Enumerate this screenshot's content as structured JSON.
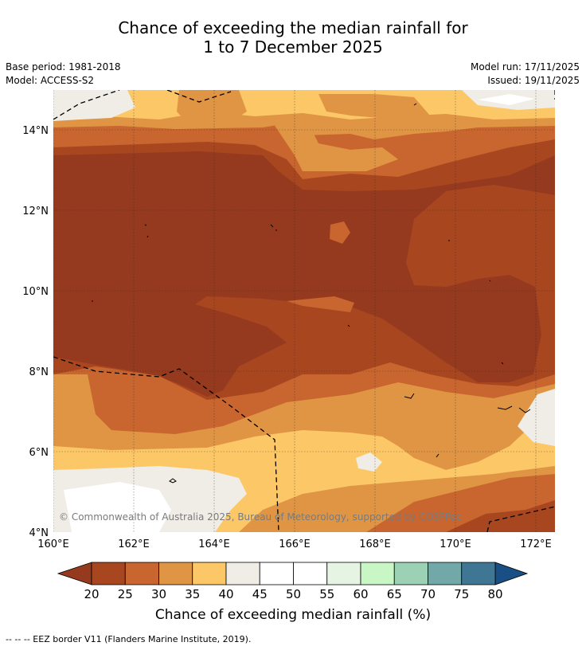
{
  "title": {
    "line1": "Chance of exceeding the median rainfall for",
    "line2": "1 to 7 December 2025"
  },
  "meta": {
    "base_period": "Base period: 1981-2018",
    "model": "Model: ACCESS-S2",
    "model_run": "Model run: 17/11/2025",
    "issued": "Issued: 19/11/2025"
  },
  "map": {
    "copyright": "© Commonwealth of Australia 2025, Bureau of Meteorology, supported by COSPPac",
    "lon_ticks": [
      "160°E",
      "162°E",
      "164°E",
      "166°E",
      "168°E",
      "170°E",
      "172°E"
    ],
    "lat_ticks": [
      "14°N",
      "12°N",
      "10°N",
      "8°N",
      "6°N",
      "4°N"
    ]
  },
  "colorbar": {
    "ticks": [
      "20",
      "25",
      "30",
      "35",
      "40",
      "45",
      "50",
      "55",
      "60",
      "65",
      "70",
      "75",
      "80"
    ],
    "colors": [
      "#a84620",
      "#c9662f",
      "#e09545",
      "#fcc766",
      "#f0ede6",
      "#ffffff",
      "#ffffff",
      "#e6f5e3",
      "#c8f7c5",
      "#9dd1b5",
      "#72a8a8",
      "#3f7694"
    ],
    "under_color": "#963a1f",
    "over_color": "#1a4f86",
    "label": "Chance of exceeding median rainfall (%)"
  },
  "footnote": "--  --  -- EEZ border V11 (Flanders Marine Institute, 2019)."
}
